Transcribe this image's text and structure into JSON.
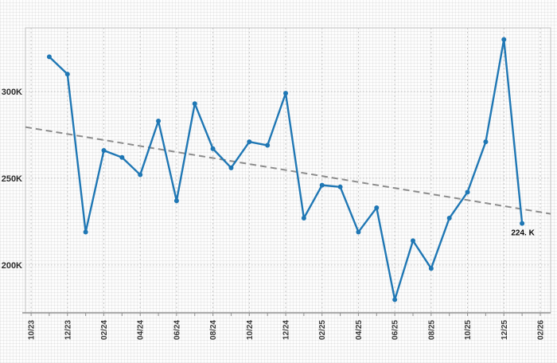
{
  "chart_data": {
    "type": "line",
    "title": "",
    "xlabel": "",
    "ylabel": "",
    "legend": "none",
    "grid": "on",
    "xlim_month_index": [
      -0.31,
      28.57
    ],
    "ylim": [
      172.4,
      336.7
    ],
    "y_ticks": [
      {
        "label": "200K",
        "value": 200
      },
      {
        "label": "250K",
        "value": 250
      },
      {
        "label": "300K",
        "value": 300
      }
    ],
    "x_ticks": [
      {
        "label": "10/23"
      },
      {
        "label": "12/23"
      },
      {
        "label": "02/24"
      },
      {
        "label": "04/24"
      },
      {
        "label": "06/24"
      },
      {
        "label": "08/24"
      },
      {
        "label": "10/24"
      },
      {
        "label": "12/24"
      },
      {
        "label": "02/25"
      },
      {
        "label": "04/25"
      },
      {
        "label": "06/25"
      },
      {
        "label": "08/25"
      },
      {
        "label": "10/25"
      },
      {
        "label": "12/25"
      },
      {
        "label": "02/26"
      }
    ],
    "points": [
      {
        "x": "11/23",
        "v": 320
      },
      {
        "x": "12/23",
        "v": 310
      },
      {
        "x": "01/24",
        "v": 219
      },
      {
        "x": "02/24",
        "v": 266
      },
      {
        "x": "03/24",
        "v": 262
      },
      {
        "x": "04/24",
        "v": 252
      },
      {
        "x": "05/24",
        "v": 283
      },
      {
        "x": "06/24",
        "v": 237
      },
      {
        "x": "07/24",
        "v": 293
      },
      {
        "x": "08/24",
        "v": 267
      },
      {
        "x": "09/24",
        "v": 256
      },
      {
        "x": "10/24",
        "v": 271
      },
      {
        "x": "11/24",
        "v": 269
      },
      {
        "x": "12/24",
        "v": 299
      },
      {
        "x": "01/25",
        "v": 227
      },
      {
        "x": "02/25",
        "v": 246
      },
      {
        "x": "03/25",
        "v": 245
      },
      {
        "x": "04/25",
        "v": 219
      },
      {
        "x": "05/25",
        "v": 233
      },
      {
        "x": "06/25",
        "v": 180
      },
      {
        "x": "07/25",
        "v": 214
      },
      {
        "x": "08/25",
        "v": 198
      },
      {
        "x": "09/25",
        "v": 227
      },
      {
        "x": "10/25",
        "v": 242
      },
      {
        "x": "11/25",
        "v": 271
      },
      {
        "x": "12/25",
        "v": 330
      },
      {
        "x": "01/26",
        "v": 224
      }
    ],
    "values_unit": "K",
    "trendline": {
      "start_value": 279.5,
      "end_value": 229.5,
      "style": "dashed"
    },
    "annotation": {
      "text": "224. K",
      "at_point": "01/26"
    },
    "colors": {
      "line": "#1f77b4",
      "marker": "#1f77b4",
      "trend": "#8c8c8c",
      "grid": "#c6c6c6",
      "axis": "#8f8f8f",
      "border": "#c6c6c6"
    }
  }
}
